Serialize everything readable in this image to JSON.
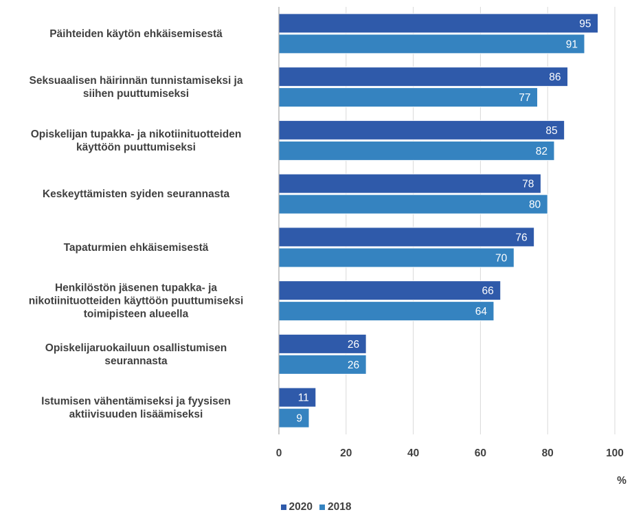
{
  "chart_data": {
    "type": "bar",
    "orientation": "horizontal",
    "categories": [
      [
        "Päihteiden käytön ehkäisemisestä"
      ],
      [
        "Seksuaalisen häirinnän tunnistamiseksi ja",
        "siihen puuttumiseksi"
      ],
      [
        "Opiskelijan tupakka- ja nikotiinituotteiden",
        "käyttöön puuttumiseksi"
      ],
      [
        "Keskeyttämisten syiden seurannasta"
      ],
      [
        "Tapaturmien ehkäisemisestä"
      ],
      [
        "Henkilöstön jäsenen tupakka- ja",
        "nikotiinituotteiden käyttöön puuttumiseksi",
        "toimipisteen alueella"
      ],
      [
        "Opiskelijaruokailuun osallistumisen",
        "seurannasta"
      ],
      [
        "Istumisen vähentämiseksi ja fyysisen",
        "aktiivisuuden lisäämiseksi"
      ]
    ],
    "series": [
      {
        "name": "2020",
        "color": "#2f5aaa",
        "values": [
          95,
          86,
          85,
          78,
          76,
          66,
          26,
          11
        ]
      },
      {
        "name": "2018",
        "color": "#3583c0",
        "values": [
          91,
          77,
          82,
          80,
          70,
          64,
          26,
          9
        ]
      }
    ],
    "xlim": [
      0,
      100
    ],
    "xticks": [
      "0",
      "20",
      "40",
      "60",
      "80",
      "100"
    ],
    "xlabel": "%",
    "gridlines": true,
    "legend_position": "bottom"
  }
}
